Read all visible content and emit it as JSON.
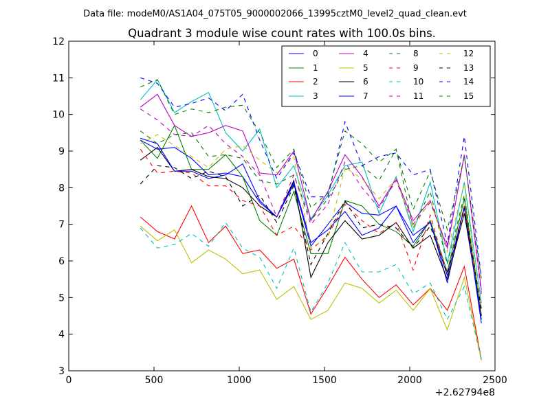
{
  "chart_data": {
    "type": "line",
    "suptitle": "Data file: modeM0/AS1A04_075T05_9000002066_13995cztM0_level2_quad_clean.evt",
    "title": "Quadrant 3 module wise count rates with 100.0s bins.",
    "xlabel": "",
    "ylabel": "",
    "x_offset_label": "+2.62794e8",
    "xlim": [
      0,
      2500
    ],
    "ylim": [
      3,
      12
    ],
    "xticks": [
      0,
      500,
      1000,
      1500,
      2000,
      2500
    ],
    "yticks": [
      3,
      4,
      5,
      6,
      7,
      8,
      9,
      10,
      11,
      12
    ],
    "grid": false,
    "legend_position": "top-right",
    "legend_columns": 4,
    "x": [
      420,
      520,
      620,
      720,
      820,
      920,
      1020,
      1120,
      1220,
      1320,
      1420,
      1520,
      1620,
      1720,
      1820,
      1920,
      2020,
      2120,
      2220,
      2320,
      2420
    ],
    "series": [
      {
        "name": "0",
        "color": "#0000ff",
        "dash": "solid",
        "values": [
          9.3,
          9.05,
          9.1,
          8.8,
          8.35,
          8.4,
          8.3,
          7.6,
          7.2,
          8.1,
          6.4,
          7.0,
          7.6,
          7.3,
          7.25,
          7.5,
          6.5,
          7.1,
          5.4,
          7.5,
          4.3
        ]
      },
      {
        "name": "1",
        "color": "#008000",
        "dash": "solid",
        "values": [
          9.3,
          8.8,
          9.7,
          8.5,
          8.5,
          8.9,
          8.3,
          7.1,
          6.7,
          7.9,
          6.2,
          6.2,
          7.65,
          7.5,
          7.0,
          6.8,
          6.4,
          7.1,
          5.7,
          7.7,
          4.5
        ]
      },
      {
        "name": "2",
        "color": "#ff0000",
        "dash": "solid",
        "values": [
          7.2,
          6.8,
          6.6,
          7.5,
          6.5,
          6.95,
          6.2,
          6.3,
          5.8,
          6.05,
          4.55,
          5.3,
          6.1,
          5.5,
          5.0,
          5.35,
          4.8,
          5.25,
          4.65,
          5.85,
          3.3
        ]
      },
      {
        "name": "3",
        "color": "#00bfbf",
        "dash": "solid",
        "values": [
          10.4,
          10.95,
          10.05,
          10.35,
          10.6,
          9.5,
          9.0,
          9.6,
          8.0,
          8.6,
          7.15,
          7.8,
          8.6,
          8.7,
          7.3,
          8.3,
          6.8,
          8.15,
          5.95,
          8.15,
          4.85
        ]
      },
      {
        "name": "4",
        "color": "#bf00bf",
        "dash": "solid",
        "values": [
          10.2,
          10.55,
          9.7,
          9.4,
          9.5,
          9.7,
          9.55,
          8.4,
          8.35,
          9.0,
          7.1,
          7.9,
          8.9,
          8.3,
          7.5,
          8.25,
          7.1,
          7.65,
          6.35,
          8.9,
          5.2
        ]
      },
      {
        "name": "5",
        "color": "#bfbf00",
        "dash": "solid",
        "values": [
          6.95,
          6.55,
          6.85,
          5.95,
          6.3,
          6.05,
          5.65,
          5.75,
          4.95,
          5.3,
          4.4,
          4.65,
          5.4,
          5.25,
          4.85,
          5.2,
          4.65,
          5.25,
          4.12,
          5.55,
          3.28
        ]
      },
      {
        "name": "6",
        "color": "#000000",
        "dash": "solid",
        "values": [
          8.75,
          9.1,
          8.45,
          8.5,
          8.3,
          8.25,
          8.0,
          7.5,
          7.2,
          8.2,
          5.55,
          6.5,
          7.1,
          6.6,
          6.7,
          7.05,
          6.35,
          6.7,
          5.5,
          7.3,
          4.5
        ]
      },
      {
        "name": "7",
        "color": "#0000ff",
        "dash": "solid",
        "values": [
          9.35,
          9.2,
          8.45,
          8.45,
          8.25,
          8.35,
          8.65,
          7.65,
          7.2,
          8.15,
          6.5,
          6.85,
          7.35,
          6.7,
          6.9,
          7.5,
          6.7,
          7.05,
          5.6,
          7.45,
          4.4
        ]
      },
      {
        "name": "8",
        "color": "#008000",
        "dash": "dashed",
        "values": [
          9.55,
          9.2,
          9.45,
          9.5,
          8.85,
          8.9,
          8.8,
          8.2,
          8.1,
          8.35,
          7.1,
          7.7,
          8.5,
          8.6,
          8.2,
          9.05,
          6.9,
          7.9,
          5.9,
          7.8,
          4.6
        ]
      },
      {
        "name": "9",
        "color": "#ff0000",
        "dash": "dashed",
        "values": [
          9.05,
          8.4,
          8.45,
          8.4,
          8.05,
          8.05,
          7.65,
          7.5,
          6.7,
          6.95,
          6.3,
          6.7,
          7.55,
          7.1,
          6.75,
          7.05,
          5.75,
          7.25,
          5.65,
          7.5,
          4.7
        ]
      },
      {
        "name": "10",
        "color": "#00bfbf",
        "dash": "dashed",
        "values": [
          6.9,
          6.35,
          6.45,
          6.75,
          6.4,
          7.05,
          6.35,
          6.1,
          5.25,
          6.35,
          4.6,
          5.4,
          6.5,
          5.7,
          5.7,
          5.9,
          5.1,
          5.4,
          4.4,
          5.3,
          3.3
        ]
      },
      {
        "name": "11",
        "color": "#bf00bf",
        "dash": "dashed",
        "values": [
          10.15,
          9.85,
          9.45,
          9.4,
          9.7,
          9.2,
          8.85,
          8.35,
          7.2,
          8.35,
          7.0,
          7.55,
          8.7,
          8.0,
          7.45,
          8.2,
          7.0,
          7.6,
          6.4,
          8.9,
          5.1
        ]
      },
      {
        "name": "12",
        "color": "#bfbf00",
        "dash": "dashed",
        "values": [
          9.2,
          9.45,
          9.15,
          8.85,
          8.55,
          9.05,
          9.15,
          8.75,
          8.4,
          8.85,
          6.35,
          6.65,
          8.55,
          8.25,
          7.7,
          8.25,
          6.9,
          7.65,
          6.25,
          8.1,
          4.55
        ]
      },
      {
        "name": "13",
        "color": "#000000",
        "dash": "dashed",
        "values": [
          8.1,
          8.6,
          8.55,
          8.25,
          8.45,
          8.3,
          7.5,
          7.8,
          7.05,
          8.05,
          5.9,
          6.75,
          7.65,
          6.9,
          7.0,
          6.9,
          6.35,
          6.95,
          5.65,
          7.45,
          4.7
        ]
      },
      {
        "name": "14",
        "color": "#0000ff",
        "dash": "dashed",
        "values": [
          11.0,
          10.85,
          10.2,
          10.3,
          10.45,
          10.1,
          10.55,
          9.3,
          8.25,
          8.95,
          7.75,
          7.75,
          9.8,
          8.6,
          8.85,
          8.95,
          8.35,
          8.5,
          6.45,
          9.4,
          5.55
        ]
      },
      {
        "name": "15",
        "color": "#008000",
        "dash": "dashed",
        "values": [
          10.75,
          10.95,
          10.0,
          10.15,
          10.05,
          10.2,
          10.25,
          9.5,
          8.55,
          9.05,
          7.45,
          7.85,
          9.55,
          9.2,
          8.7,
          9.05,
          7.4,
          8.45,
          6.85,
          8.85,
          5.5
        ]
      }
    ]
  }
}
